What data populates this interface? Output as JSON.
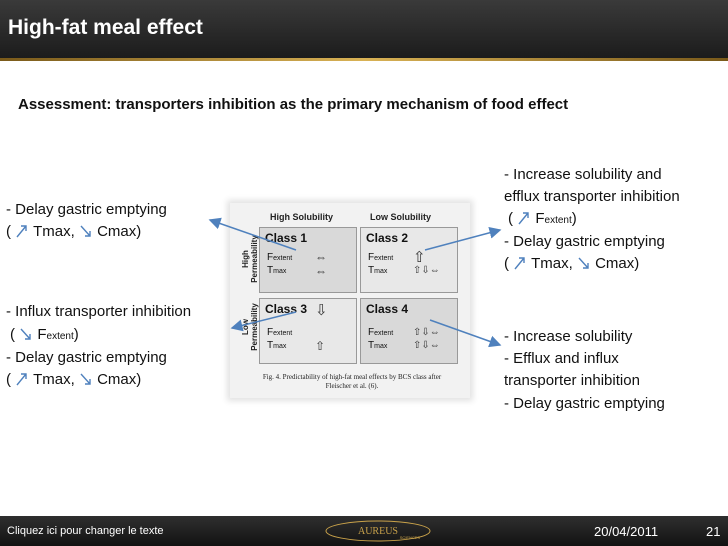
{
  "slide": {
    "title": "High-fat meal effect",
    "subtitle": "Assessment: transporters inhibition as the primary mechanism of food effect"
  },
  "left_top": {
    "line1": "- Delay gastric emptying",
    "open": "(",
    "tmax": "Tmax,",
    "cmax": "Cmax)"
  },
  "left_bottom": {
    "line1": "- Influx transporter inhibition",
    "open": "(",
    "f": "F",
    "f_sub": "extent",
    "close": ")",
    "line3": "- Delay gastric emptying",
    "open2": "(",
    "tmax": "Tmax,",
    "cmax": "Cmax)"
  },
  "right_top": {
    "line1": "- Increase solubility and",
    "line2": "efflux transporter inhibition",
    "open": "(",
    "f": "F",
    "f_sub": "extent",
    "close": ")",
    "line4": "- Delay gastric emptying",
    "open2": "(",
    "tmax": "Tmax,",
    "cmax": "Cmax)"
  },
  "right_bottom": {
    "line1": "- Increase solubility",
    "line2": "- Efflux and influx",
    "line3": "transporter inhibition",
    "line4": "- Delay gastric emptying"
  },
  "figure": {
    "col_high": "High Solubility",
    "col_low": "Low Solubility",
    "row_high": "High Permeability",
    "row_low": "Low Permeability",
    "cells": [
      {
        "title": "Class 1",
        "f": "F",
        "f_sub": "extent",
        "t": "T",
        "t_sub": "max",
        "f_glyph": "⇔",
        "t_glyph": "⇔"
      },
      {
        "title": "Class 2",
        "f": "F",
        "f_sub": "extent",
        "t": "T",
        "t_sub": "max",
        "f_glyph": "⇧",
        "t_glyph": "⇧⇩⇔"
      },
      {
        "title": "Class 3",
        "f": "F",
        "f_sub": "extent",
        "t": "T",
        "t_sub": "max",
        "f_glyph": "⇩",
        "t_glyph": "⇧"
      },
      {
        "title": "Class 4",
        "f": "F",
        "f_sub": "extent",
        "t": "T",
        "t_sub": "max",
        "f_glyph": "⇧⇩⇔",
        "t_glyph": "⇧⇩⇔"
      }
    ],
    "caption_line1": "Fig. 4. Predictability of high-fat meal effects by BCS class after",
    "caption_line2": "Fleischer et al. (6)."
  },
  "footer": {
    "left_text": "Cliquez ici pour changer le texte",
    "logo_text": "AUREUS",
    "logo_sub": "SCIENCES",
    "date": "20/04/2011",
    "page": "21"
  },
  "colors": {
    "arrow": "#4f81bd",
    "title_bg": "#2a2a2a",
    "gold": "#c9a24a"
  },
  "icons": {
    "up": "arrow-up-right-icon",
    "down": "arrow-down-right-icon"
  }
}
